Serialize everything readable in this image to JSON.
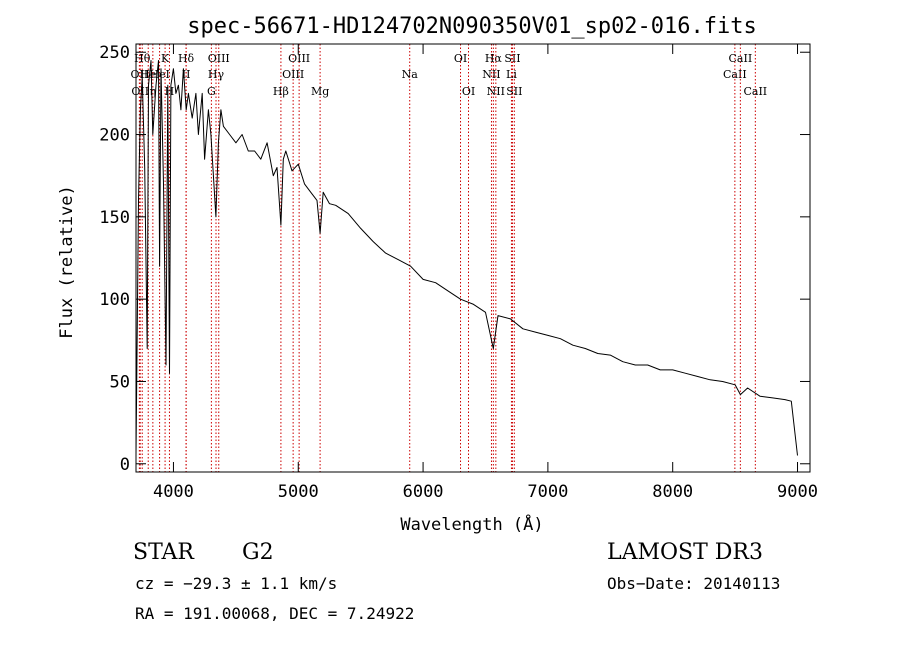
{
  "chart_data": {
    "type": "line",
    "title": "spec-56671-HD124702N090350V01_sp02-016.fits",
    "xlabel": "Wavelength (Å)",
    "ylabel": "Flux (relative)",
    "xlim": [
      3700,
      9100
    ],
    "ylim": [
      -5,
      255
    ],
    "xticks": [
      4000,
      5000,
      6000,
      7000,
      8000,
      9000
    ],
    "yticks": [
      0,
      50,
      100,
      150,
      200,
      250
    ],
    "grid": false,
    "line_color": "#000000",
    "marker_color": "#cc0000",
    "series": [
      {
        "x": [
          3700,
          3720,
          3735,
          3750,
          3770,
          3790,
          3800,
          3820,
          3835,
          3860,
          3880,
          3889,
          3900,
          3920,
          3940,
          3955,
          3968,
          3980,
          4000,
          4020,
          4040,
          4060,
          4080,
          4102,
          4120,
          4150,
          4180,
          4200,
          4230,
          4250,
          4280,
          4300,
          4320,
          4340,
          4360,
          4380,
          4400,
          4450,
          4500,
          4550,
          4600,
          4650,
          4700,
          4750,
          4800,
          4830,
          4861,
          4880,
          4900,
          4950,
          5000,
          5050,
          5100,
          5150,
          5175,
          5200,
          5250,
          5300,
          5400,
          5500,
          5600,
          5700,
          5800,
          5900,
          6000,
          6100,
          6200,
          6300,
          6400,
          6500,
          6563,
          6600,
          6700,
          6800,
          6900,
          7000,
          7100,
          7200,
          7300,
          7400,
          7500,
          7600,
          7700,
          7800,
          7900,
          8000,
          8100,
          8200,
          8300,
          8400,
          8500,
          8542,
          8600,
          8700,
          8800,
          8900,
          8950,
          9000
        ],
        "y": [
          5,
          160,
          215,
          235,
          180,
          70,
          230,
          245,
          200,
          230,
          245,
          120,
          240,
          170,
          60,
          230,
          55,
          230,
          240,
          225,
          230,
          215,
          240,
          215,
          225,
          210,
          225,
          200,
          225,
          185,
          215,
          200,
          175,
          150,
          195,
          215,
          205,
          200,
          195,
          200,
          190,
          190,
          185,
          195,
          175,
          180,
          145,
          185,
          190,
          178,
          182,
          170,
          165,
          160,
          140,
          165,
          158,
          157,
          152,
          143,
          135,
          128,
          124,
          120,
          112,
          110,
          105,
          100,
          97,
          92,
          70,
          90,
          88,
          82,
          80,
          78,
          76,
          72,
          70,
          67,
          66,
          62,
          60,
          60,
          57,
          57,
          55,
          53,
          51,
          50,
          48,
          42,
          46,
          41,
          40,
          39,
          38,
          5
        ]
      }
    ],
    "markers": [
      {
        "wl": 3727,
        "label": "OII",
        "row": 1
      },
      {
        "wl": 3734,
        "label": "OII",
        "row": 2
      },
      {
        "wl": 3750,
        "label": "Hθ",
        "row": 0
      },
      {
        "wl": 3798,
        "label": "He",
        "row": 1
      },
      {
        "wl": 3835,
        "label": "η",
        "row": 2
      },
      {
        "wl": 3889,
        "label": "HeI",
        "row": 1
      },
      {
        "wl": 3933,
        "label": "K",
        "row": 0
      },
      {
        "wl": 3968,
        "label": "H",
        "row": 2
      },
      {
        "wl": 4101,
        "label": "Hδ",
        "row": 0
      },
      {
        "wl": 4102,
        "label": "II",
        "row": 1
      },
      {
        "wl": 4304,
        "label": "G",
        "row": 2
      },
      {
        "wl": 4341,
        "label": "Hγ",
        "row": 1
      },
      {
        "wl": 4363,
        "label": "OIII",
        "row": 0
      },
      {
        "wl": 4861,
        "label": "Hβ",
        "row": 2
      },
      {
        "wl": 4959,
        "label": "OIII",
        "row": 1
      },
      {
        "wl": 5007,
        "label": "OIII",
        "row": 0
      },
      {
        "wl": 5175,
        "label": "Mg",
        "row": 2
      },
      {
        "wl": 5893,
        "label": "Na",
        "row": 1
      },
      {
        "wl": 6300,
        "label": "OI",
        "row": 0
      },
      {
        "wl": 6364,
        "label": "OI",
        "row": 2
      },
      {
        "wl": 6548,
        "label": "NII",
        "row": 1
      },
      {
        "wl": 6563,
        "label": "Hα",
        "row": 0
      },
      {
        "wl": 6583,
        "label": "NII",
        "row": 2
      },
      {
        "wl": 6716,
        "label": "SII",
        "row": 0
      },
      {
        "wl": 6731,
        "label": "SII",
        "row": 2
      },
      {
        "wl": 6708,
        "label": "Li",
        "row": 1
      },
      {
        "wl": 8498,
        "label": "CaII",
        "row": 1
      },
      {
        "wl": 8542,
        "label": "CaII",
        "row": 0
      },
      {
        "wl": 8662,
        "label": "CaII",
        "row": 2
      }
    ]
  },
  "info": {
    "object_class": "STAR",
    "subclass": "G2",
    "survey": "LAMOST DR3",
    "cz": "cz = −29.3 ± 1.1 km/s",
    "obs_date": "Obs−Date: 20140113",
    "coords": "RA = 191.00068, DEC =    7.24922"
  }
}
